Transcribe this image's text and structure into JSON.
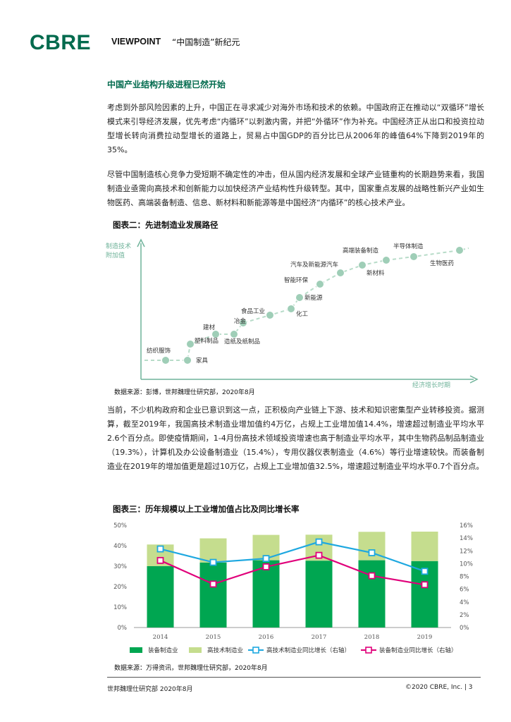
{
  "header": {
    "logo": "CBRE",
    "series": "VIEWPOINT",
    "subject": "“中国制造”新纪元"
  },
  "section_title": "中国产业结构升级进程已然开始",
  "paragraphs": {
    "p1": "考虑到外部风险因素的上升，中国正在寻求减少对海外市场和技术的依赖。中国政府正在推动以“双循环”增长模式来引导经济发展，优先考虑“内循环”以刺激内需，并把“外循环”作为补充。中国经济正从出口和投资拉动型增长转向消费拉动型增长的道路上，贸易占中国GDP的百分比已从2006年的峰值64%下降到2019年的35%。",
    "p2": "尽管中国制造核心竞争力受短期不确定性的冲击，但从国内经济发展和全球产业链重构的长期趋势来看，我国制造业亟需向高技术和创新能力以加快经济产业结构性升级转型。其中，国家重点发展的战略性新兴产业如生物医药、高端装备制造、信息、新材料和新能源等是中国经济“内循环”的核心技术产业。",
    "p3": "当前，不少机构政府和企业已意识到这一点，正积极向产业链上下游、技术和知识密集型产业转移投资。据测算，截至2019年，我国高技术制造业增加值约4万亿，占规上工业增加值14.4%，增速超过制造业平均水平2.6个百分点。即使疫情期间，1-4月份高技术领域投资增速也高于制造业平均水平，其中生物药品制品制造业（19.3%），计算机及办公设备制造业（15.4%），专用仪器仪表制造业（4.6%）等行业增速较快。而装备制造业在2019年的增加值更是超过10万亿，占规上工业增加值32.5%，增速超过制造业平均水平0.7个百分点。"
  },
  "figure2": {
    "title": "图表二：先进制造业发展路径",
    "ylabel": "制造技术\n附加值",
    "xlabel": "经济增长时期",
    "stages": [
      {
        "label": "纺织服饰"
      },
      {
        "label": "家具"
      },
      {
        "label": "塑料制品"
      },
      {
        "label": "建材"
      },
      {
        "label": "造纸及纸制品"
      },
      {
        "label": "冶金"
      },
      {
        "label": "食品工业"
      },
      {
        "label": "化工"
      },
      {
        "label": "新能源"
      },
      {
        "label": "智能环保"
      },
      {
        "label": "汽车及新能源汽车"
      },
      {
        "label": "新材料"
      },
      {
        "label": "高端装备制造"
      },
      {
        "label": "半导体制造"
      },
      {
        "label": "生物医药"
      }
    ],
    "source": "数据来源：彭博，世邦魏理仕研究部，2020年8月"
  },
  "figure3": {
    "title": "图表三：历年规模以上工业增加值占比及同比增长率",
    "source": "数据来源：万得资讯，世邦魏理仕研究部，2020年8月",
    "colors": {
      "equipment": "#00a651",
      "hightech": "#c5dd8e",
      "hightech_growth": "#1ea8e0",
      "equipment_growth": "#e0007a"
    }
  },
  "chart_data": {
    "type": "bar",
    "categories": [
      "2014",
      "2015",
      "2016",
      "2017",
      "2018",
      "2019"
    ],
    "series": [
      {
        "name": "装备制造业",
        "type": "bar",
        "axis": "left",
        "values": [
          30,
          31.8,
          32.9,
          32.7,
          32.9,
          32.5
        ]
      },
      {
        "name": "高技术制造业",
        "type": "bar",
        "axis": "left",
        "stacked_on": "装备制造业",
        "values": [
          10.6,
          11.8,
          12.4,
          12.7,
          13.9,
          14.4
        ]
      },
      {
        "name": "高技术制造业同比增长（右轴）",
        "type": "line",
        "axis": "right",
        "values": [
          12.3,
          10.2,
          10.8,
          13.4,
          11.7,
          8.8
        ]
      },
      {
        "name": "装备制造业同比增长（右轴）",
        "type": "line",
        "axis": "right",
        "values": [
          10.5,
          6.8,
          9.5,
          11.3,
          8.1,
          6.7
        ]
      }
    ],
    "ylim_left": [
      0,
      50
    ],
    "ylim_right": [
      0,
      16
    ],
    "yticks_left": [
      "0%",
      "10%",
      "20%",
      "30%",
      "40%",
      "50%"
    ],
    "yticks_right": [
      "0%",
      "2%",
      "4%",
      "6%",
      "8%",
      "10%",
      "12%",
      "14%",
      "16%"
    ],
    "legend_position": "bottom",
    "grid": false
  },
  "footer": {
    "left": "世邦魏理仕研究部 2020年8月",
    "right": "©2020 CBRE, Inc. |  3"
  }
}
